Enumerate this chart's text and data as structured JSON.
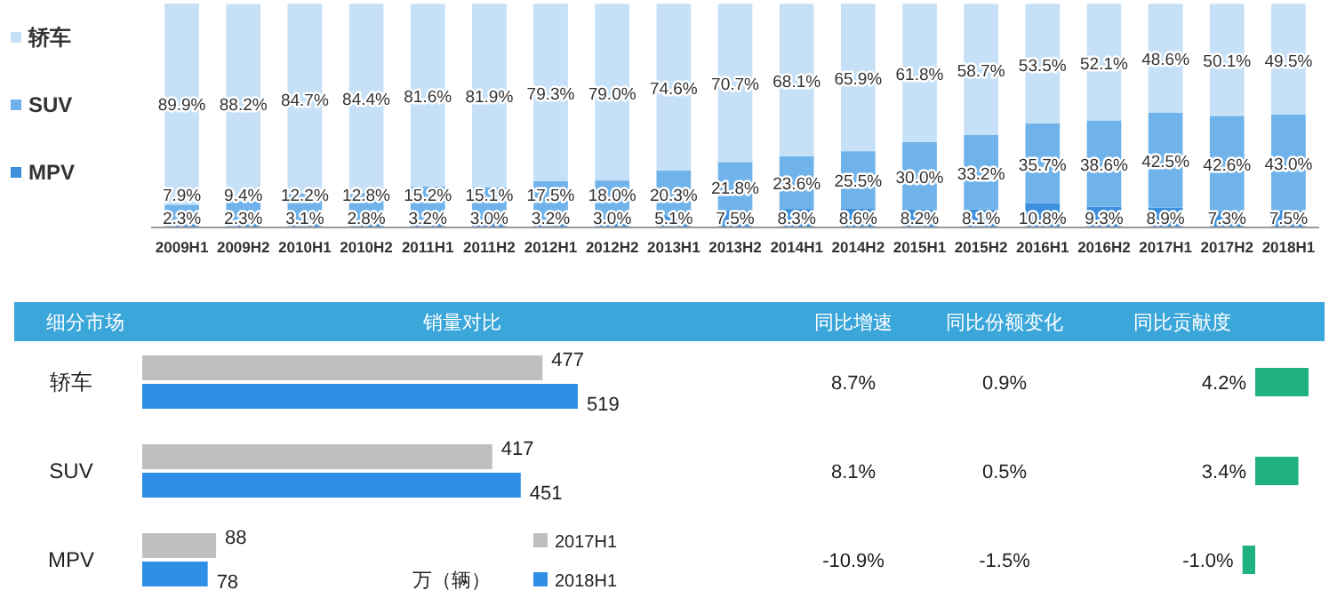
{
  "chart_data": [
    {
      "type": "bar",
      "stacked": true,
      "legend": "left",
      "categories": [
        "2009H1",
        "2009H2",
        "2010H1",
        "2010H2",
        "2011H1",
        "2011H2",
        "2012H1",
        "2012H2",
        "2013H1",
        "2013H2",
        "2014H1",
        "2014H2",
        "2015H1",
        "2015H2",
        "2016H1",
        "2016H2",
        "2017H1",
        "2017H2",
        "2018H1"
      ],
      "series": [
        {
          "name": "MPV",
          "color": "#3b8fdc",
          "values": [
            2.3,
            2.3,
            3.1,
            2.8,
            3.2,
            3.0,
            3.2,
            3.0,
            5.1,
            7.5,
            8.3,
            8.6,
            8.2,
            8.1,
            10.8,
            9.3,
            8.9,
            7.3,
            7.5
          ],
          "value_labels": [
            "2.3%",
            "2.3%",
            "3.1%",
            "2.8%",
            "3.2%",
            "3.0%",
            "3.2%",
            "3.0%",
            "5.1%",
            "7.5%",
            "8.3%",
            "8.6%",
            "8.2%",
            "8.1%",
            "10.8%",
            "9.3%",
            "8.9%",
            "7.3%",
            "7.5%"
          ]
        },
        {
          "name": "SUV",
          "color": "#6fb3ea",
          "values": [
            7.9,
            9.4,
            12.2,
            12.8,
            15.2,
            15.1,
            17.5,
            18.0,
            20.3,
            21.8,
            23.6,
            25.5,
            30.0,
            33.2,
            35.7,
            38.6,
            42.5,
            42.6,
            43.0
          ],
          "value_labels": [
            "7.9%",
            "9.4%",
            "12.2%",
            "12.8%",
            "15.2%",
            "15.1%",
            "17.5%",
            "18.0%",
            "20.3%",
            "21.8%",
            "23.6%",
            "25.5%",
            "30.0%",
            "33.2%",
            "35.7%",
            "38.6%",
            "42.5%",
            "42.6%",
            "43.0%"
          ]
        },
        {
          "name": "轿车",
          "color": "#c6e1f7",
          "values": [
            89.9,
            88.2,
            84.7,
            84.4,
            81.6,
            81.9,
            79.3,
            79.0,
            74.6,
            70.7,
            68.1,
            65.9,
            61.8,
            58.7,
            53.5,
            52.1,
            48.6,
            50.1,
            49.5
          ],
          "value_labels": [
            "89.9%",
            "88.2%",
            "84.7%",
            "84.4%",
            "81.6%",
            "81.9%",
            "79.3%",
            "79.0%",
            "74.6%",
            "70.7%",
            "68.1%",
            "65.9%",
            "61.8%",
            "58.7%",
            "53.5%",
            "52.1%",
            "48.6%",
            "50.1%",
            "49.5%"
          ]
        }
      ]
    },
    {
      "type": "bar",
      "orientation": "horizontal",
      "title": "销量对比",
      "data_labels": true,
      "legend": "bottom",
      "categories": [
        "轿车",
        "SUV",
        "MPV"
      ],
      "series": [
        {
          "name": "2017H1",
          "color": "#bfbfbf",
          "values": [
            477,
            417,
            88
          ]
        },
        {
          "name": "2018H1",
          "color": "#2f8fe6",
          "values": [
            519,
            451,
            78
          ]
        }
      ],
      "annotations": [
        "万（辆）",
        "细分市场",
        "同比增速",
        "同比份额变化",
        "8.7%",
        "0.9%",
        "8.1%",
        "0.5%",
        "-10.9%",
        "-1.5%"
      ]
    },
    {
      "type": "bar",
      "orientation": "horizontal",
      "title": "同比贡献度",
      "categories": [
        null,
        null,
        null
      ],
      "color": "#1fb27e",
      "values": [
        4.2,
        3.4,
        -1.0
      ],
      "value_labels": [
        "4.2%",
        "3.4%",
        "-1.0%"
      ]
    }
  ]
}
